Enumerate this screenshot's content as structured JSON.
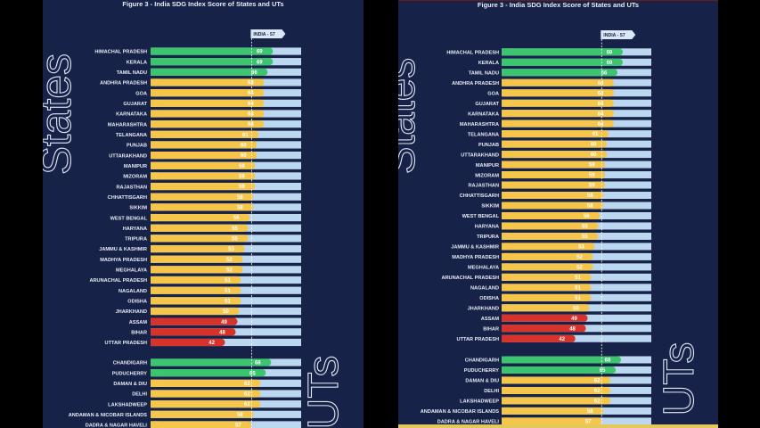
{
  "figure_title": "Figure 3 - India SDG Index Score of States and UTs",
  "group_labels": {
    "states": "States",
    "uts": "UTs"
  },
  "colors": {
    "background": "#162248",
    "track": "#bcd8f0",
    "achiever": "#3cc46e",
    "front_runner": "#f6c64a",
    "aspirant": "#d8332a",
    "label": "#e8ecf5"
  },
  "chart_data": {
    "type": "bar",
    "title": "Figure 3 - India SDG Index Score of States and UTs",
    "xlim": [
      0,
      100
    ],
    "reference_line": {
      "label": "INDIA - 57",
      "value": 57
    },
    "states": [
      {
        "name": "HIMACHAL PRADESH",
        "value": 69,
        "category": "achiever"
      },
      {
        "name": "KERALA",
        "value": 69,
        "category": "achiever"
      },
      {
        "name": "TAMIL NADU",
        "value": 66,
        "category": "achiever"
      },
      {
        "name": "ANDHRA PRADESH",
        "value": 64,
        "category": "front_runner"
      },
      {
        "name": "GOA",
        "value": 64,
        "category": "front_runner"
      },
      {
        "name": "GUJARAT",
        "value": 64,
        "category": "front_runner"
      },
      {
        "name": "KARNATAKA",
        "value": 64,
        "category": "front_runner"
      },
      {
        "name": "MAHARASHTRA",
        "value": 64,
        "category": "front_runner"
      },
      {
        "name": "TELANGANA",
        "value": 61,
        "category": "front_runner"
      },
      {
        "name": "PUNJAB",
        "value": 60,
        "category": "front_runner"
      },
      {
        "name": "UTTARAKHAND",
        "value": 60,
        "category": "front_runner"
      },
      {
        "name": "MANIPUR",
        "value": 59,
        "category": "front_runner"
      },
      {
        "name": "MIZORAM",
        "value": 59,
        "category": "front_runner"
      },
      {
        "name": "RAJASTHAN",
        "value": 59,
        "category": "front_runner"
      },
      {
        "name": "CHHATTISGARH",
        "value": 58,
        "category": "front_runner"
      },
      {
        "name": "SIKKIM",
        "value": 58,
        "category": "front_runner"
      },
      {
        "name": "WEST BENGAL",
        "value": 56,
        "category": "front_runner"
      },
      {
        "name": "HARYANA",
        "value": 55,
        "category": "front_runner"
      },
      {
        "name": "TRIPURA",
        "value": 55,
        "category": "front_runner"
      },
      {
        "name": "JAMMU & KASHMIR",
        "value": 53,
        "category": "front_runner"
      },
      {
        "name": "MADHYA PRADESH",
        "value": 52,
        "category": "front_runner"
      },
      {
        "name": "MEGHALAYA",
        "value": 52,
        "category": "front_runner"
      },
      {
        "name": "ARUNACHAL PRADESH",
        "value": 51,
        "category": "front_runner"
      },
      {
        "name": "NAGALAND",
        "value": 51,
        "category": "front_runner"
      },
      {
        "name": "ODISHA",
        "value": 51,
        "category": "front_runner"
      },
      {
        "name": "JHARKHAND",
        "value": 50,
        "category": "front_runner"
      },
      {
        "name": "ASSAM",
        "value": 49,
        "category": "aspirant"
      },
      {
        "name": "BIHAR",
        "value": 48,
        "category": "aspirant"
      },
      {
        "name": "UTTAR PRADESH",
        "value": 42,
        "category": "aspirant"
      }
    ],
    "uts": [
      {
        "name": "CHANDIGARH",
        "value": 68,
        "category": "achiever"
      },
      {
        "name": "PUDUCHERRY",
        "value": 65,
        "category": "achiever"
      },
      {
        "name": "DAMAN & DIU",
        "value": 62,
        "category": "front_runner"
      },
      {
        "name": "DELHI",
        "value": 62,
        "category": "front_runner"
      },
      {
        "name": "LAKSHADWEEP",
        "value": 62,
        "category": "front_runner"
      },
      {
        "name": "ANDAMAN & NICOBAR ISLANDS",
        "value": 58,
        "category": "front_runner"
      },
      {
        "name": "DADRA & NAGAR HAVELI",
        "value": 57,
        "category": "front_runner"
      }
    ]
  }
}
